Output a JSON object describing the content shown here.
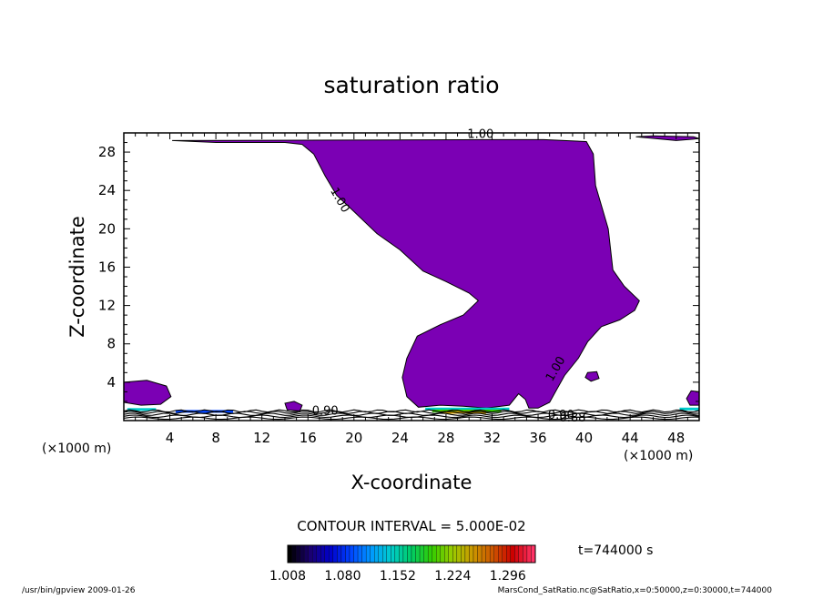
{
  "chart_data": {
    "type": "contour",
    "title": "saturation ratio",
    "xlabel": "X-coordinate",
    "ylabel": "Z-coordinate",
    "x_unit_label": "(×1000 m)",
    "y_unit_label": "(×1000 m)",
    "xlim": [
      0,
      50
    ],
    "ylim": [
      0,
      30
    ],
    "x_ticks": [
      4,
      8,
      12,
      16,
      20,
      24,
      28,
      32,
      36,
      40,
      44,
      48
    ],
    "y_ticks": [
      4,
      8,
      12,
      16,
      20,
      24,
      28
    ],
    "fill_color": "#7b00b4",
    "contour_labels": [
      {
        "text": "1.00",
        "x": 31,
        "z": 29.5
      },
      {
        "text": "1.00",
        "x": 18.5,
        "z": 22.8
      },
      {
        "text": "1.00",
        "x": 37.8,
        "z": 5.2
      },
      {
        "text": "0.90",
        "x": 17.5,
        "z": 0.6
      },
      {
        "text": "0.90",
        "x": 38,
        "z": 0.2
      },
      {
        "text": "0.88",
        "x": 39,
        "z": -0.1
      }
    ],
    "region_above_1": [
      [
        4.2,
        29.2
      ],
      [
        8,
        29.0
      ],
      [
        14,
        29.0
      ],
      [
        15.5,
        28.8
      ],
      [
        16.5,
        27.8
      ],
      [
        17.5,
        25.5
      ],
      [
        18.5,
        23.5
      ],
      [
        20,
        21.8
      ],
      [
        22,
        19.5
      ],
      [
        24,
        17.8
      ],
      [
        26,
        15.6
      ],
      [
        28,
        14.5
      ],
      [
        30,
        13.3
      ],
      [
        30.8,
        12.5
      ],
      [
        29.5,
        11.0
      ],
      [
        27.5,
        10.0
      ],
      [
        25.5,
        8.8
      ],
      [
        24.6,
        6.5
      ],
      [
        24.2,
        4.5
      ],
      [
        24.6,
        2.5
      ],
      [
        25.6,
        1.4
      ],
      [
        27.5,
        1.6
      ],
      [
        29.5,
        1.5
      ],
      [
        31.5,
        1.3
      ],
      [
        33.5,
        1.6
      ],
      [
        34.3,
        2.8
      ],
      [
        34.9,
        2.2
      ],
      [
        35.2,
        1.3
      ],
      [
        36.0,
        1.3
      ],
      [
        37.0,
        1.9
      ],
      [
        37.6,
        3.2
      ],
      [
        38.3,
        4.7
      ],
      [
        39.5,
        6.5
      ],
      [
        40.3,
        8.2
      ],
      [
        41.5,
        9.8
      ],
      [
        43.1,
        10.5
      ],
      [
        44.4,
        11.5
      ],
      [
        44.8,
        12.5
      ],
      [
        43.5,
        14.0
      ],
      [
        42.5,
        15.7
      ],
      [
        42.1,
        20.0
      ],
      [
        41.0,
        24.5
      ],
      [
        40.8,
        27.8
      ],
      [
        40.2,
        29.1
      ],
      [
        36.5,
        29.3
      ],
      [
        31.0,
        29.3
      ]
    ],
    "colorbar": {
      "tick_labels": [
        "1.008",
        "1.080",
        "1.152",
        "1.224",
        "1.296"
      ],
      "min": 1.008,
      "max": 1.332,
      "colors": [
        "#000000",
        "#1a0070",
        "#0000cc",
        "#0044ff",
        "#0099ff",
        "#00cccc",
        "#00cc66",
        "#33cc00",
        "#99cc00",
        "#cc9900",
        "#cc5500",
        "#cc0000",
        "#ff3366"
      ]
    },
    "contour_interval_text": "CONTOUR INTERVAL = 5.000E-02",
    "time_text": "t=744000 s"
  },
  "footer": {
    "left": "/usr/bin/gpview   2009-01-26",
    "right": "MarsCond_SatRatio.nc@SatRatio,x=0:50000,z=0:30000,t=744000"
  }
}
